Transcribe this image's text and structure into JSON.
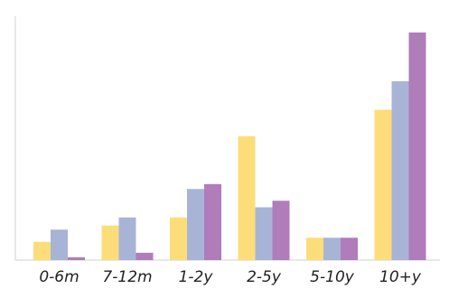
{
  "chart_data": {
    "type": "bar",
    "categories": [
      "0-6m",
      "7-12m",
      "1-2y",
      "2-5y",
      "5-10y",
      "10+y"
    ],
    "series": [
      {
        "values": [
          4.5,
          8.5,
          10.5,
          30.5,
          5.5,
          37
        ]
      },
      {
        "values": [
          7.5,
          10.5,
          17.5,
          13,
          5.5,
          44
        ]
      },
      {
        "values": [
          0.7,
          1.8,
          18.7,
          14.6,
          5.5,
          56
        ]
      }
    ],
    "ylim": [
      0,
      60
    ],
    "grid": false,
    "legend": "none",
    "colors": [
      "#fddd7a",
      "#a8b4d6",
      "#b07cba"
    ]
  }
}
